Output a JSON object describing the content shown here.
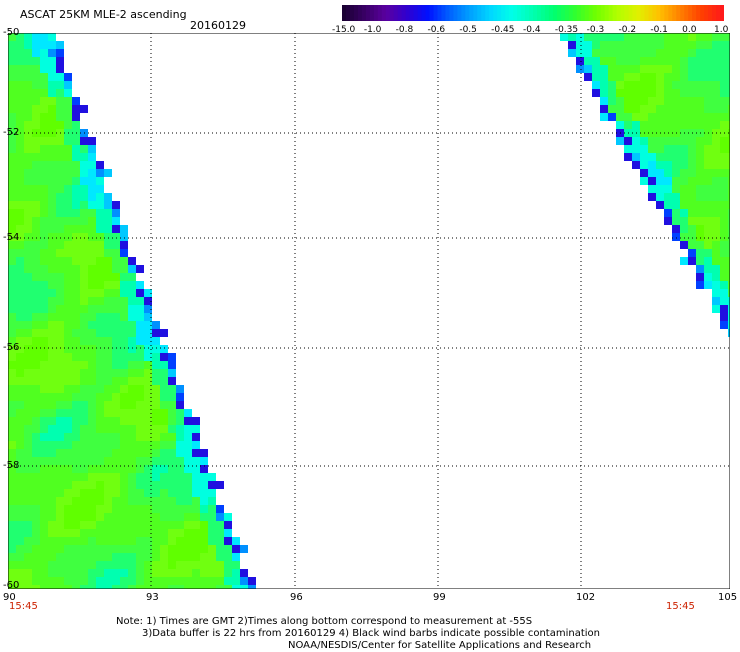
{
  "header": {
    "title": "ASCAT 25KM MLE-2 ascending",
    "date": "20160129"
  },
  "colorbar": {
    "labels": [
      "-15.0",
      "-1.0",
      "-0.8",
      "-0.6",
      "-0.5",
      "-0.45",
      "-0.4",
      "-0.35",
      "-0.3",
      "-0.2",
      "-0.1",
      "0.0",
      "1.0"
    ],
    "colors": [
      "#1a0033",
      "#5a00a0",
      "#2000c8",
      "#0030ff",
      "#0090ff",
      "#00d8ff",
      "#00ffe0",
      "#00ffa0",
      "#40ff40",
      "#a0ff00",
      "#ffe000",
      "#ff8000",
      "#ff2000"
    ]
  },
  "map": {
    "lon_labels": [
      "90",
      "93",
      "96",
      "99",
      "102",
      "105"
    ],
    "lat_labels": [
      "-50",
      "-52",
      "-54",
      "-56",
      "-58",
      "-60"
    ],
    "time_left": "15:45",
    "time_right": "15:45"
  },
  "notes": {
    "line1": "Note: 1) Times are GMT 2)Times along bottom correspond to measurement at -55S",
    "line2": "3)Data buffer is 22 hrs from 20160129 4) Black wind barbs indicate possible contamination",
    "line3": "NOAA/NESDIS/Center for Satellite Applications and Research"
  }
}
